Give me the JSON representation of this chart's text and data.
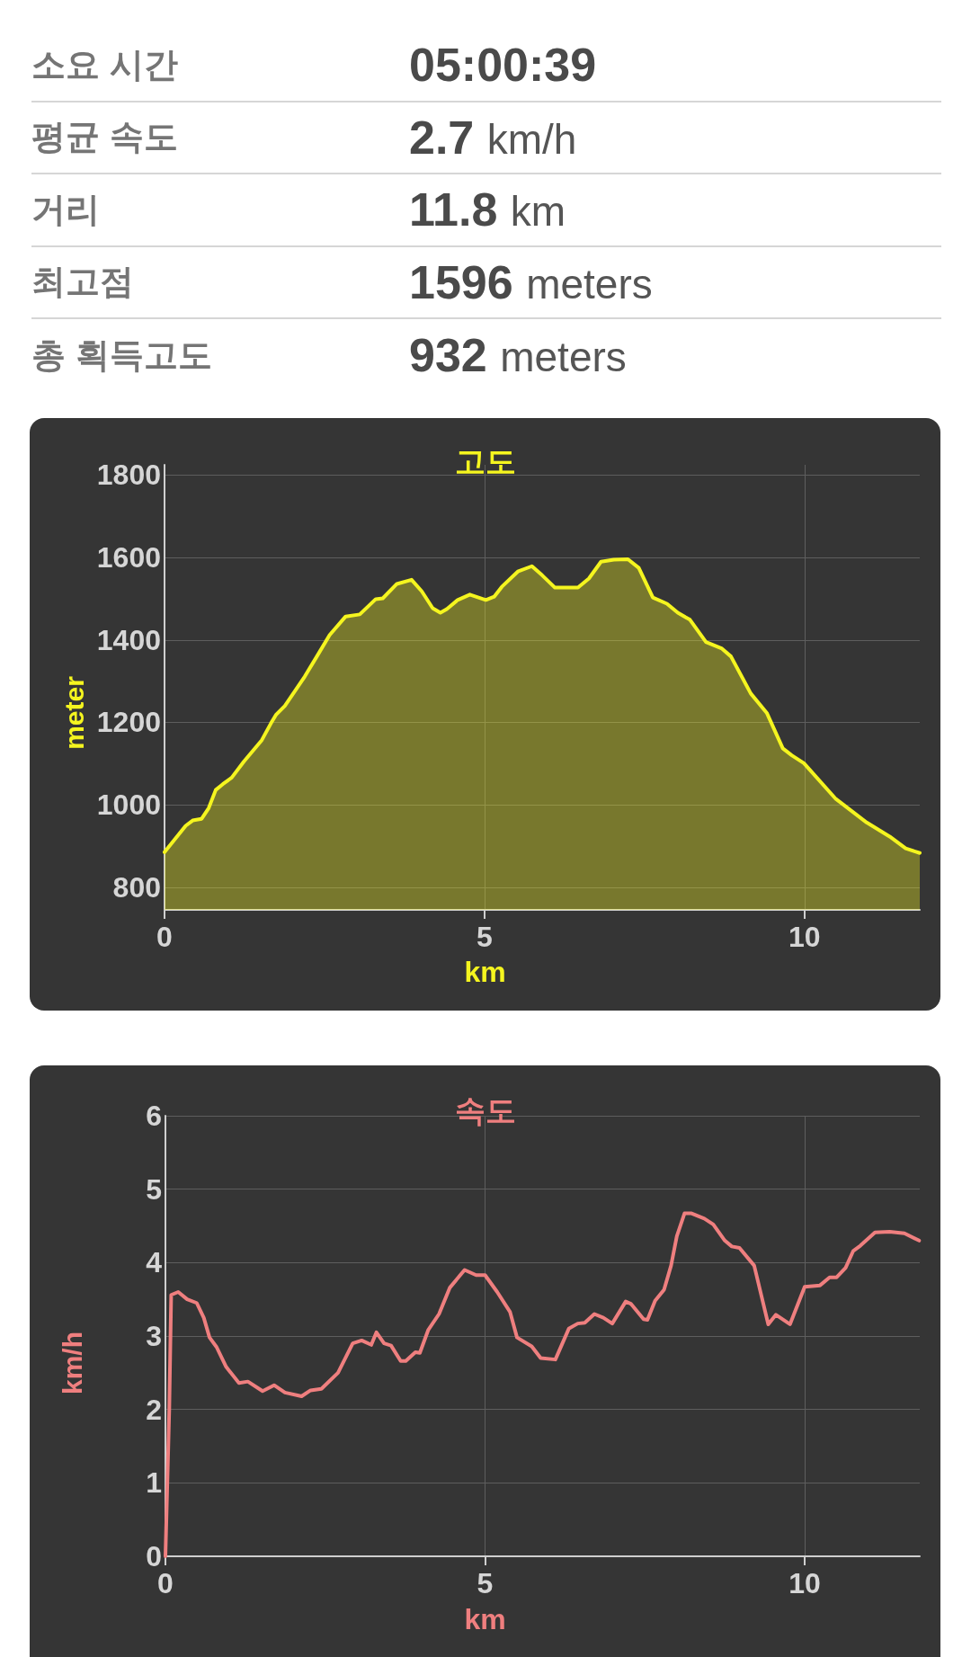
{
  "chart_data": [
    {
      "type": "other",
      "annotations": [
        "소요 시간",
        "05:00:39",
        "평균 속도",
        "2.7 km/h",
        "거리",
        "11.8 km",
        "최고점",
        "1596 meters",
        "총 획득고도",
        "932 meters"
      ]
    },
    {
      "type": "area",
      "title": "고도",
      "xlabel": "km",
      "ylabel": "meter",
      "x": [
        0,
        0.33,
        0.44,
        0.58,
        0.69,
        0.8,
        0.91,
        1.05,
        1.24,
        1.52,
        1.66,
        1.74,
        1.88,
        2.19,
        2.38,
        2.58,
        2.83,
        3.05,
        3.3,
        3.41,
        3.63,
        3.86,
        4.02,
        4.19,
        4.31,
        4.41,
        4.58,
        4.77,
        5.02,
        5.15,
        5.27,
        5.52,
        5.74,
        5.9,
        6.1,
        6.46,
        6.63,
        6.82,
        7.02,
        7.24,
        7.41,
        7.63,
        7.85,
        8.02,
        8.21,
        8.46,
        8.71,
        8.85,
        9.16,
        9.41,
        9.66,
        9.8,
        9.99,
        10.49,
        10.97,
        11.33,
        11.58,
        11.8
      ],
      "series": [
        {
          "color": "#f5f51f",
          "values": [
            885,
            949,
            962,
            966,
            992,
            1036,
            1050,
            1066,
            1105,
            1157,
            1197,
            1218,
            1240,
            1311,
            1360,
            1412,
            1457,
            1462,
            1499,
            1501,
            1536,
            1546,
            1518,
            1477,
            1466,
            1475,
            1497,
            1510,
            1497,
            1505,
            1529,
            1566,
            1579,
            1557,
            1527,
            1527,
            1549,
            1590,
            1595,
            1596,
            1575,
            1503,
            1488,
            1466,
            1449,
            1395,
            1379,
            1360,
            1270,
            1223,
            1137,
            1120,
            1101,
            1014,
            957,
            923,
            894,
            883
          ]
        }
      ],
      "xlim": [
        0,
        11.8
      ],
      "ylim": [
        745,
        1825
      ],
      "xticks": [
        0,
        5,
        10
      ],
      "yticks": [
        800,
        1000,
        1200,
        1400,
        1600,
        1800
      ],
      "grid": true
    },
    {
      "type": "line",
      "title": "속도",
      "xlabel": "km",
      "ylabel": "km/h",
      "x": [
        0,
        0.06,
        0.09,
        0.2,
        0.34,
        0.49,
        0.6,
        0.69,
        0.8,
        0.95,
        1.15,
        1.29,
        1.52,
        1.7,
        1.87,
        2.13,
        2.27,
        2.44,
        2.7,
        2.93,
        3.07,
        3.22,
        3.3,
        3.42,
        3.53,
        3.68,
        3.76,
        3.91,
        3.98,
        4.11,
        4.28,
        4.45,
        4.68,
        4.86,
        5.0,
        5.19,
        5.39,
        5.5,
        5.73,
        5.87,
        6.1,
        6.31,
        6.45,
        6.56,
        6.71,
        6.85,
        6.99,
        7.2,
        7.28,
        7.48,
        7.54,
        7.66,
        7.8,
        7.91,
        8.0,
        8.12,
        8.23,
        8.43,
        8.57,
        8.75,
        8.86,
        8.98,
        9.21,
        9.43,
        9.55,
        9.77,
        10.0,
        10.24,
        10.39,
        10.5,
        10.64,
        10.76,
        10.87,
        11.1,
        11.33,
        11.56,
        11.79
      ],
      "series": [
        {
          "color": "#ef7f7f",
          "values": [
            0,
            2.0,
            3.56,
            3.6,
            3.5,
            3.45,
            3.25,
            2.98,
            2.85,
            2.58,
            2.36,
            2.38,
            2.25,
            2.33,
            2.23,
            2.18,
            2.26,
            2.28,
            2.5,
            2.9,
            2.94,
            2.88,
            3.05,
            2.9,
            2.87,
            2.66,
            2.66,
            2.78,
            2.77,
            3.08,
            3.3,
            3.66,
            3.9,
            3.83,
            3.83,
            3.6,
            3.33,
            2.98,
            2.86,
            2.7,
            2.68,
            3.1,
            3.17,
            3.18,
            3.3,
            3.25,
            3.17,
            3.47,
            3.44,
            3.23,
            3.22,
            3.48,
            3.63,
            3.96,
            4.36,
            4.67,
            4.67,
            4.6,
            4.52,
            4.3,
            4.22,
            4.2,
            3.96,
            3.16,
            3.29,
            3.16,
            3.67,
            3.69,
            3.8,
            3.8,
            3.93,
            4.16,
            4.23,
            4.41,
            4.42,
            4.4,
            4.3
          ]
        }
      ],
      "xlim": [
        0,
        11.8
      ],
      "ylim": [
        0,
        6
      ],
      "xticks": [
        0,
        5,
        10
      ],
      "yticks": [
        0,
        1,
        2,
        3,
        4,
        5,
        6
      ],
      "grid": true
    }
  ]
}
